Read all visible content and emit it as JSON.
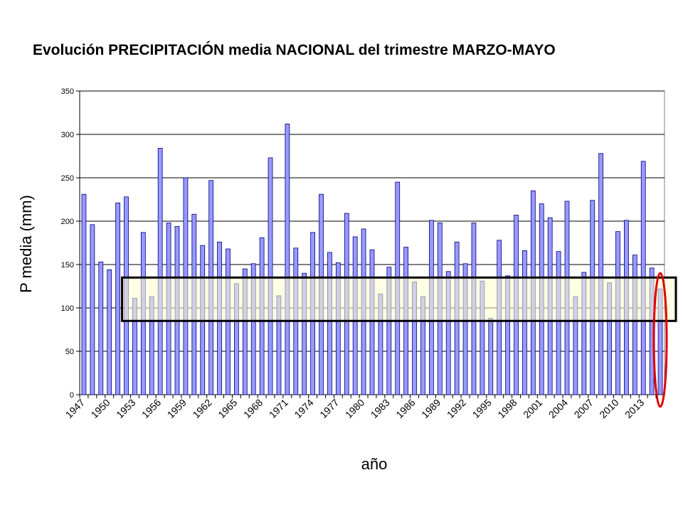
{
  "colors": {
    "bar_fill": "#9999ff",
    "bar_stroke": "#000080",
    "plot_background": "#ffffff",
    "grid": "#000000",
    "highlight_band_fill": "#ffffcc",
    "highlight_band_stroke": "#000000",
    "ellipse_stroke": "#e00000"
  },
  "chart_data": {
    "type": "bar",
    "title": "Evolución PRECIPITACIÓN media NACIONAL del trimestre MARZO-MAYO",
    "xlabel": "año",
    "ylabel": "P media (mm)",
    "ylim": [
      0,
      350
    ],
    "yticks": [
      0,
      50,
      100,
      150,
      200,
      250,
      300,
      350
    ],
    "grid": true,
    "legend": "none",
    "x_tick_labels": [
      "1947",
      "1950",
      "1953",
      "1956",
      "1959",
      "1962",
      "1965",
      "1968",
      "1971",
      "1974",
      "1977",
      "1980",
      "1983",
      "1986",
      "1989",
      "1992",
      "1995",
      "1998",
      "2001",
      "2004",
      "2007",
      "2010",
      "2013"
    ],
    "categories": [
      1947,
      1948,
      1949,
      1950,
      1951,
      1952,
      1953,
      1954,
      1955,
      1956,
      1957,
      1958,
      1959,
      1960,
      1961,
      1962,
      1963,
      1964,
      1965,
      1966,
      1967,
      1968,
      1969,
      1970,
      1971,
      1972,
      1973,
      1974,
      1975,
      1976,
      1977,
      1978,
      1979,
      1980,
      1981,
      1982,
      1983,
      1984,
      1985,
      1986,
      1987,
      1988,
      1989,
      1990,
      1991,
      1992,
      1993,
      1994,
      1995,
      1996,
      1997,
      1998,
      1999,
      2000,
      2001,
      2002,
      2003,
      2004,
      2005,
      2006,
      2007,
      2008,
      2009,
      2010,
      2011,
      2012,
      2013,
      2014,
      2015
    ],
    "values": [
      231,
      196,
      153,
      144,
      221,
      228,
      111,
      187,
      113,
      284,
      198,
      194,
      250,
      208,
      172,
      247,
      176,
      168,
      128,
      145,
      151,
      181,
      273,
      114,
      312,
      169,
      140,
      187,
      231,
      164,
      152,
      209,
      182,
      191,
      167,
      116,
      147,
      245,
      170,
      130,
      113,
      201,
      198,
      142,
      176,
      151,
      198,
      131,
      88,
      178,
      137,
      207,
      166,
      235,
      220,
      204,
      165,
      223,
      113,
      141,
      224,
      278,
      129,
      188,
      201,
      161,
      269,
      146,
      122
    ],
    "highlight_band": {
      "y_range": [
        85,
        135
      ],
      "from_category": 1952,
      "to_category": 2015
    },
    "highlight_ellipse_category": 2015
  }
}
